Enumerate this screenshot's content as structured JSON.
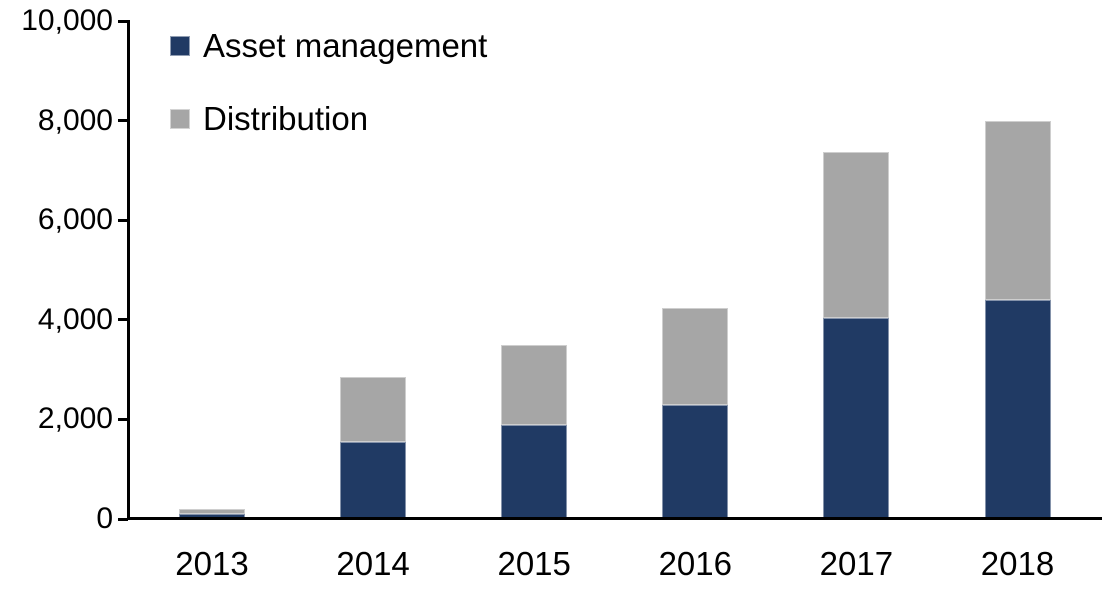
{
  "chart_data": {
    "type": "bar",
    "stacked": true,
    "title": "",
    "xlabel": "",
    "ylabel": "",
    "categories": [
      "2013",
      "2014",
      "2015",
      "2016",
      "2017",
      "2018"
    ],
    "series": [
      {
        "name": "Asset management",
        "color": "#203a64",
        "values": [
          100,
          1540,
          1880,
          2290,
          4030,
          4400
        ]
      },
      {
        "name": "Distribution",
        "color": "#a6a6a6",
        "values": [
          110,
          1310,
          1620,
          1940,
          3340,
          3600
        ]
      }
    ],
    "y_axis": {
      "min": 0,
      "max": 10000,
      "tick_interval": 2000,
      "tick_labels": [
        "0",
        "2,000",
        "4,000",
        "6,000",
        "8,000",
        "10,000"
      ]
    },
    "grid": false,
    "legend_position": "top-left",
    "colors": {
      "axis": "#000000",
      "text": "#000000",
      "background": "#ffffff"
    }
  }
}
